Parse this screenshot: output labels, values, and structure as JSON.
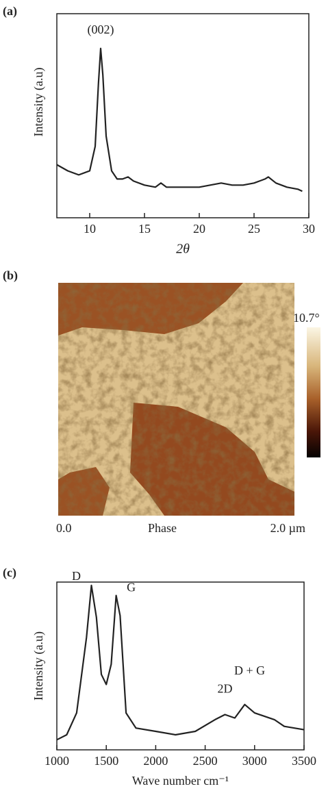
{
  "chart_data": [
    {
      "type": "line",
      "panel_label": "(a)",
      "ylabel": "Intensity (a.u)",
      "xlabel": "2θ",
      "annotations": [
        "(002)"
      ],
      "xlim": [
        7,
        30
      ],
      "xticks": [
        10,
        15,
        20,
        25,
        30
      ],
      "ylim": [
        0,
        100
      ],
      "color": "#222222",
      "x": [
        7,
        8,
        9,
        10,
        10.5,
        10.8,
        11,
        11.2,
        11.5,
        12,
        12.5,
        13,
        13.5,
        14,
        15,
        16,
        16.5,
        17,
        18,
        20,
        22,
        23,
        24,
        25,
        26,
        26.3,
        27,
        28,
        29,
        29.4
      ],
      "values": [
        26,
        23,
        21,
        23,
        35,
        66,
        83,
        70,
        40,
        23,
        19,
        19,
        20,
        18,
        16,
        15,
        17,
        15,
        15,
        15,
        17,
        16,
        16,
        17,
        19,
        20,
        17,
        15,
        14,
        13
      ]
    },
    {
      "type": "line",
      "panel_label": "(c)",
      "ylabel": "Intensity (a.u)",
      "xlabel": "Wave number cm⁻¹",
      "annotations": [
        "D",
        "G",
        "2D",
        "D + G"
      ],
      "xlim": [
        1000,
        3500
      ],
      "xticks": [
        1000,
        1500,
        2000,
        2500,
        3000,
        3500
      ],
      "ylim": [
        0,
        100
      ],
      "color": "#222222",
      "x": [
        1000,
        1100,
        1200,
        1300,
        1350,
        1400,
        1450,
        1500,
        1550,
        1600,
        1640,
        1700,
        1800,
        2000,
        2200,
        2400,
        2600,
        2700,
        2800,
        2900,
        3000,
        3200,
        3300,
        3500
      ],
      "values": [
        6,
        9,
        22,
        67,
        98,
        79,
        45,
        39,
        51,
        92,
        80,
        22,
        13,
        11,
        9,
        11,
        18,
        21,
        19,
        27,
        22,
        18,
        14,
        12
      ]
    }
  ],
  "afm_image": {
    "panel_label": "(b)",
    "scale_max": "10.7°",
    "left_label": "0.0",
    "center_label": "Phase",
    "right_label": "2.0 µm"
  }
}
